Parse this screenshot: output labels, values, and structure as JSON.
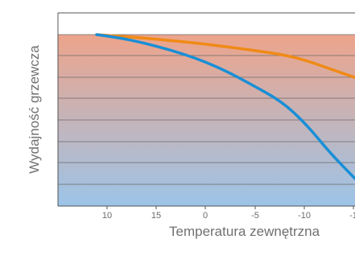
{
  "chart_data": {
    "type": "line",
    "title": "",
    "xlabel": "Temperatura zewnętrzna",
    "ylabel": "Wydajność grzewcza",
    "x_ticks": [
      "10",
      "15",
      "0",
      "-5",
      "-10",
      "-1"
    ],
    "grid": true,
    "series": [
      {
        "color": "#f08a16",
        "points": [
          [
            10,
            100
          ],
          [
            12.5,
            99
          ],
          [
            15,
            98
          ],
          [
            17.5,
            96.5
          ],
          [
            0,
            95
          ],
          [
            -2.5,
            93
          ],
          [
            -5,
            91
          ],
          [
            -7.5,
            88.5
          ],
          [
            -10,
            85
          ],
          [
            -12.5,
            80
          ],
          [
            -14,
            75
          ]
        ]
      },
      {
        "color": "#1a8fd6",
        "points": [
          [
            10,
            100
          ],
          [
            12.5,
            98
          ],
          [
            15,
            95
          ],
          [
            17.5,
            91
          ],
          [
            0,
            86
          ],
          [
            -2.5,
            79
          ],
          [
            -5,
            71
          ],
          [
            -7.5,
            61
          ],
          [
            -10,
            48
          ],
          [
            -12.5,
            31
          ],
          [
            -14,
            16
          ]
        ]
      }
    ],
    "background_gradient": {
      "top_color": "#eda48b",
      "bottom_color": "#9cc4e8"
    }
  }
}
